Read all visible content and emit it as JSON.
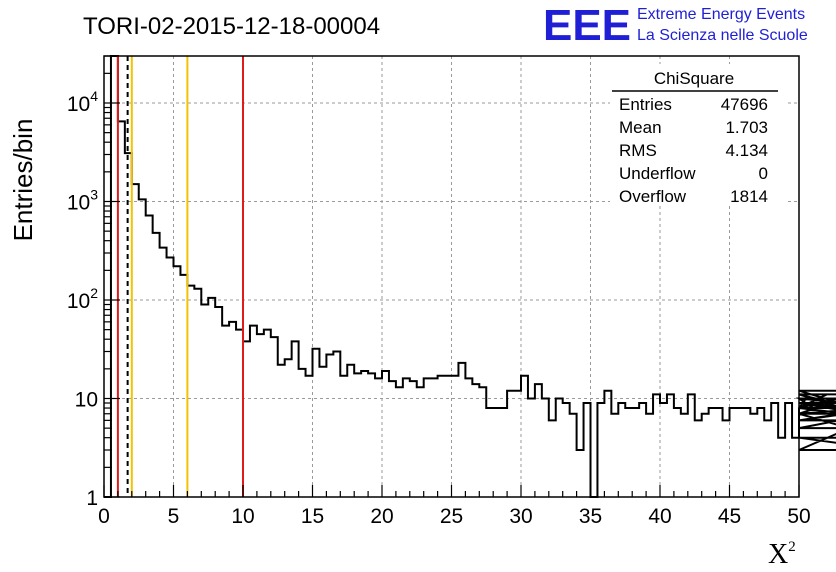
{
  "chart_data": {
    "type": "bar",
    "title": "TORI-02-2015-12-18-00004",
    "xlabel": "X",
    "xlabel_superscript": "2",
    "ylabel": "Entries/bin",
    "xlim": [
      0,
      50
    ],
    "ylim": [
      1,
      30000
    ],
    "y_scale": "log",
    "grid": true,
    "bin_width": 0.5,
    "x_ticks": [
      "0",
      "5",
      "10",
      "15",
      "20",
      "25",
      "30",
      "35",
      "40",
      "45",
      "50"
    ],
    "y_ticks": [
      {
        "value": 1,
        "base": "1",
        "exp": ""
      },
      {
        "value": 10,
        "base": "10",
        "exp": ""
      },
      {
        "value": 100,
        "base": "10",
        "exp": "2"
      },
      {
        "value": 1000,
        "base": "10",
        "exp": "3"
      },
      {
        "value": 10000,
        "base": "10",
        "exp": "4"
      }
    ],
    "values": [
      1,
      30000,
      6500,
      3100,
      1500,
      1050,
      720,
      480,
      340,
      270,
      220,
      180,
      140,
      130,
      90,
      105,
      85,
      55,
      60,
      50,
      38,
      55,
      45,
      50,
      42,
      22,
      25,
      38,
      20,
      17,
      32,
      21,
      28,
      30,
      17,
      22,
      18,
      19,
      18,
      16,
      19,
      15,
      13,
      16,
      15,
      13,
      16,
      16,
      17,
      17,
      17,
      23,
      16,
      14,
      13,
      8,
      8,
      8,
      12,
      12,
      17,
      10,
      14,
      10,
      6,
      10,
      9,
      7,
      3,
      9,
      1,
      9,
      12,
      7,
      9,
      8,
      8,
      9,
      7,
      11,
      9,
      11,
      8,
      7,
      11,
      6,
      7,
      8,
      8,
      6,
      8,
      8,
      8,
      7,
      8,
      6,
      9,
      4,
      9,
      4,
      8,
      10,
      8,
      8,
      11,
      9,
      8,
      8,
      11,
      7,
      12,
      7,
      4,
      3,
      8,
      6,
      9,
      6,
      9,
      7,
      9,
      5,
      10,
      7
    ],
    "vertical_lines": [
      {
        "x": 1,
        "color": "#e01b1b",
        "style": "solid"
      },
      {
        "x": 1.7,
        "color": "#000000",
        "style": "dashed"
      },
      {
        "x": 2,
        "color": "#f2c300",
        "style": "solid"
      },
      {
        "x": 6,
        "color": "#f2c300",
        "style": "solid"
      },
      {
        "x": 10,
        "color": "#e01b1b",
        "style": "solid"
      }
    ],
    "stats": {
      "title": "ChiSquare",
      "rows": [
        {
          "label": "Entries",
          "value": "47696"
        },
        {
          "label": "Mean",
          "value": "1.703"
        },
        {
          "label": "RMS",
          "value": "4.134"
        },
        {
          "label": "Underflow",
          "value": "0"
        },
        {
          "label": "Overflow",
          "value": "1814"
        }
      ],
      "placement": "top-right"
    }
  },
  "logo": {
    "mark": "EEE",
    "line1": "Extreme Energy Events",
    "line2": "La Scienza nelle Scuole",
    "color": "#1f1fd6"
  }
}
